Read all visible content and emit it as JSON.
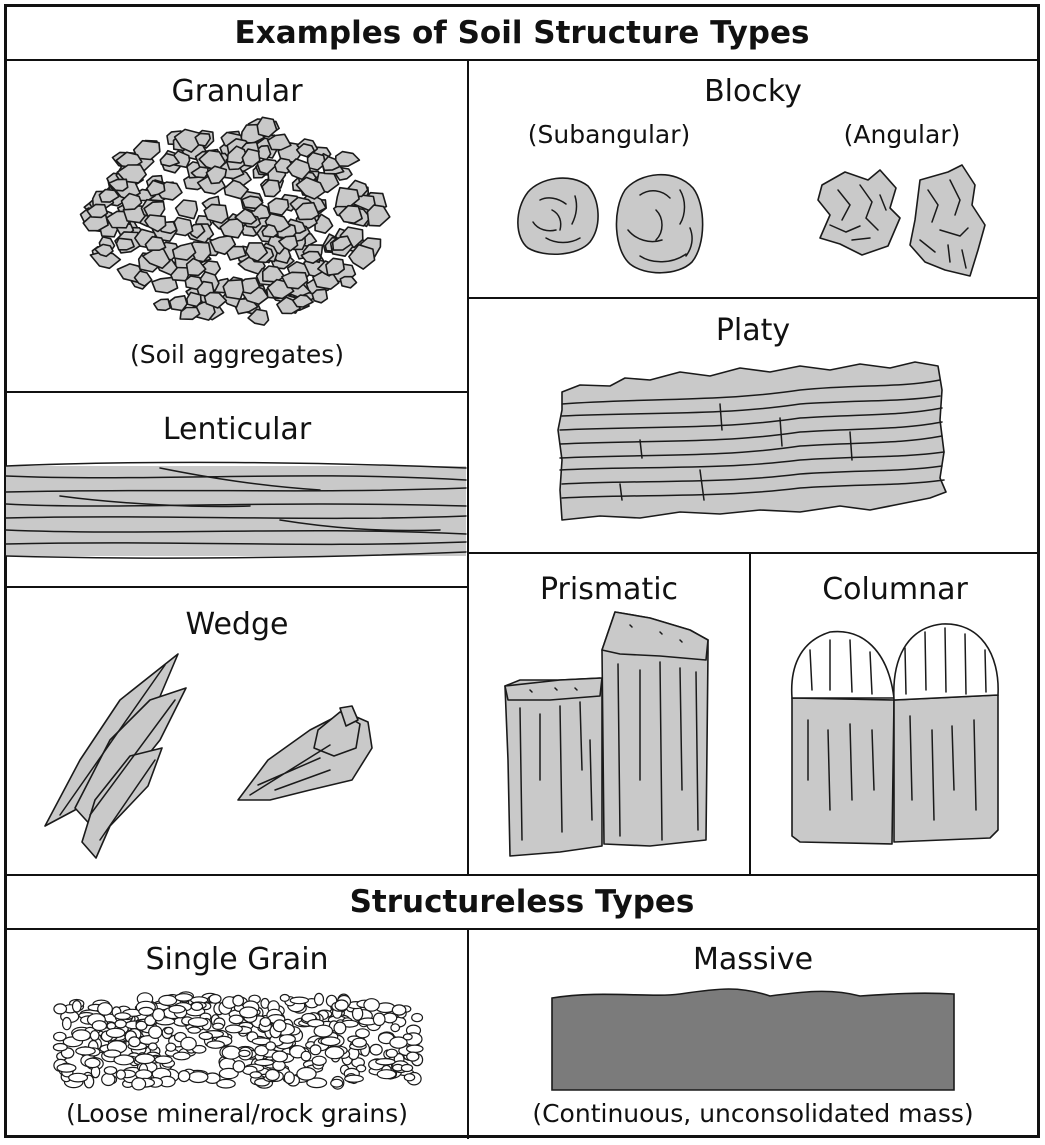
{
  "title": "Examples of Soil Structure Types",
  "panels": {
    "granular": {
      "label": "Granular",
      "caption": "(Soil aggregates)"
    },
    "blocky": {
      "label": "Blocky",
      "subangular": "(Subangular)",
      "angular": "(Angular)"
    },
    "platy": {
      "label": "Platy"
    },
    "lenticular": {
      "label": "Lenticular"
    },
    "wedge": {
      "label": "Wedge"
    },
    "prismatic": {
      "label": "Prismatic"
    },
    "columnar": {
      "label": "Columnar"
    }
  },
  "structureless": {
    "title": "Structureless Types",
    "single_grain": {
      "label": "Single Grain",
      "caption": "(Loose mineral/rock grains)"
    },
    "massive": {
      "label": "Massive",
      "caption": "(Continuous, unconsolidated mass)"
    }
  },
  "colors": {
    "fill": "#c9c9c9",
    "massive_fill": "#7b7b7b",
    "stroke": "#1a1a1a",
    "background": "#ffffff"
  }
}
